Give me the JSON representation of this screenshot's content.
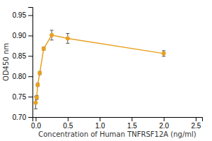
{
  "chart_data": {
    "type": "line",
    "x": [
      0.0,
      0.016,
      0.031,
      0.063,
      0.125,
      0.25,
      0.5,
      2.0
    ],
    "series": [
      {
        "values": [
          0.735,
          0.748,
          0.779,
          0.808,
          0.868,
          0.901,
          0.893,
          0.856
        ],
        "error": [
          0.015,
          0.005,
          0.004,
          0.004,
          0.004,
          0.012,
          0.012,
          0.007
        ],
        "color": "#E8A020",
        "marker": "circle"
      }
    ],
    "xlabel": "Concentration of Human TNFRSF12A (ng/ml)",
    "ylabel": "OD450 nm",
    "xlim": [
      -0.05,
      2.6
    ],
    "ylim": [
      0.7,
      0.97
    ],
    "xticks": [
      {
        "value": 0,
        "label": "0.0"
      },
      0.5,
      {
        "value": 1,
        "label": "1.0"
      },
      1.5,
      {
        "value": 2,
        "label": "2.0"
      },
      2.5
    ],
    "yticks": [
      {
        "value": 0.7,
        "label": "0.70"
      },
      0.75,
      {
        "value": 0.8,
        "label": "0.80"
      },
      0.85,
      {
        "value": 0.9,
        "label": "0.90"
      },
      0.95
    ],
    "grid": false
  }
}
